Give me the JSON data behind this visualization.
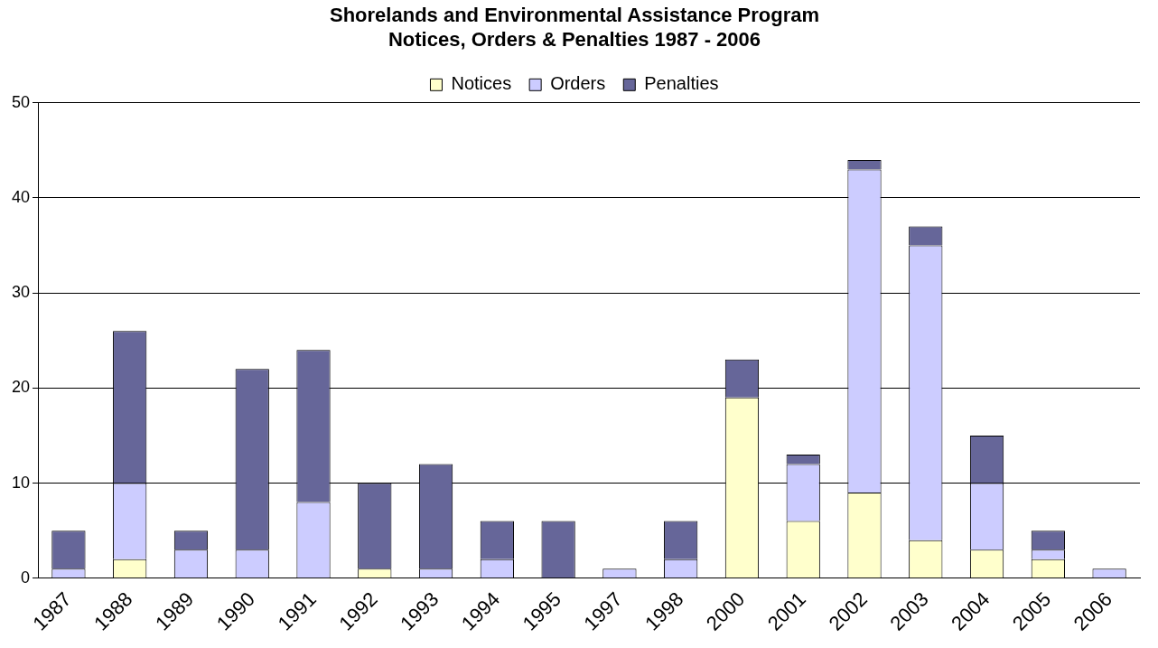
{
  "chart_data": {
    "type": "bar",
    "title": [
      "Shorelands and Environmental Assistance Program",
      "Notices, Orders & Penalties 1987 - 2006"
    ],
    "categories": [
      "1987",
      "1988",
      "1989",
      "1990",
      "1991",
      "1992",
      "1993",
      "1994",
      "1995",
      "1997",
      "1998",
      "2000",
      "2001",
      "2002",
      "2003",
      "2004",
      "2005",
      "2006"
    ],
    "stacked": true,
    "series": [
      {
        "name": "Notices",
        "color": "#ffffcc",
        "values": [
          0,
          2,
          0,
          0,
          0,
          1,
          0,
          0,
          0,
          0,
          0,
          19,
          6,
          9,
          4,
          3,
          2,
          0
        ]
      },
      {
        "name": "Orders",
        "color": "#ccccff",
        "values": [
          1,
          8,
          3,
          3,
          8,
          0,
          1,
          2,
          0,
          1,
          2,
          0,
          6,
          34,
          31,
          7,
          1,
          1
        ]
      },
      {
        "name": "Penalties",
        "color": "#666699",
        "values": [
          4,
          16,
          2,
          19,
          16,
          9,
          11,
          4,
          6,
          0,
          4,
          4,
          1,
          1,
          2,
          5,
          2,
          0
        ]
      }
    ],
    "ylim": [
      0,
      50
    ],
    "yticks": [
      0,
      10,
      20,
      30,
      40,
      50
    ],
    "grid": "y",
    "legend": "top"
  }
}
